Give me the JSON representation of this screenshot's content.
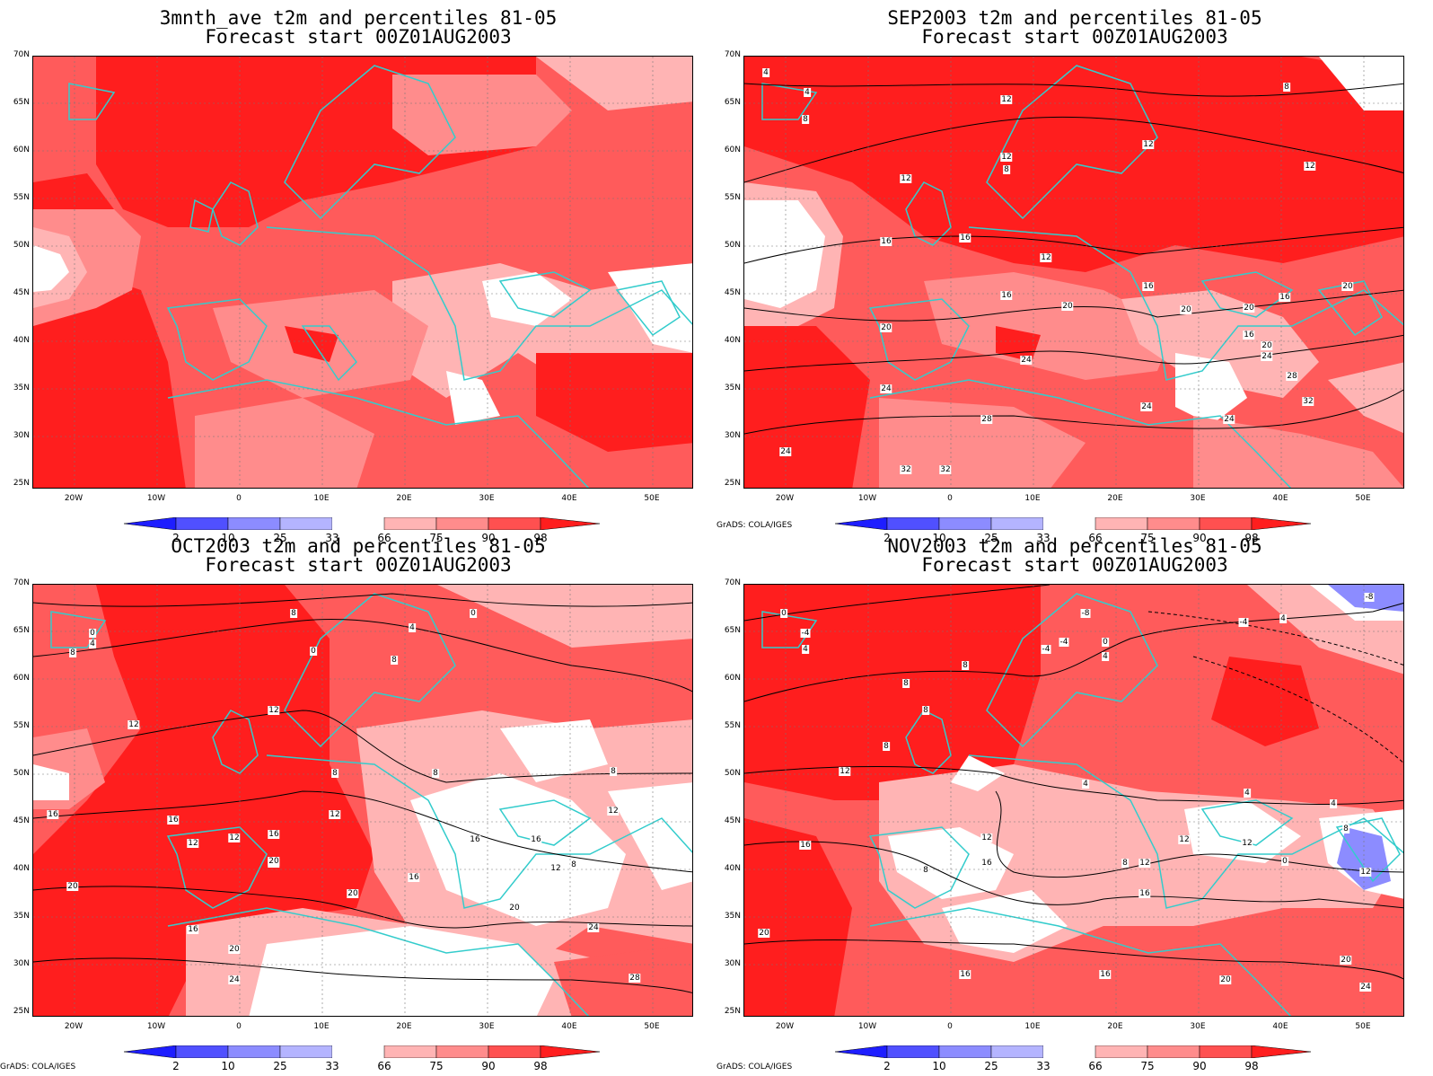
{
  "panels": [
    {
      "title_line1": "3mnth_ave t2m and percentiles 81-05",
      "title_line2": "Forecast start 00Z01AUG2003",
      "contour_labels": [],
      "credit": ""
    },
    {
      "title_line1": "SEP2003 t2m and percentiles 81-05",
      "title_line2": "Forecast start 00Z01AUG2003",
      "contour_labels": [
        "4",
        "8",
        "12",
        "12",
        "8",
        "12",
        "12",
        "12",
        "16",
        "16",
        "12",
        "16",
        "16",
        "20",
        "20",
        "20",
        "16",
        "20",
        "20",
        "16",
        "20",
        "24",
        "24",
        "24",
        "28",
        "24",
        "32",
        "24",
        "28",
        "32",
        "32",
        "24",
        "8",
        "4"
      ],
      "credit": "GrADS: COLA/IGES"
    },
    {
      "title_line1": "OCT2003 t2m and percentiles 81-05",
      "title_line2": "Forecast start 00Z01AUG2003",
      "contour_labels": [
        "0",
        "4",
        "8",
        "0",
        "8",
        "4",
        "0",
        "8",
        "12",
        "12",
        "8",
        "8",
        "16",
        "16",
        "12",
        "12",
        "16",
        "20",
        "12",
        "16",
        "16",
        "16",
        "12",
        "8",
        "20",
        "20",
        "16",
        "20",
        "20",
        "24",
        "24",
        "28",
        "8",
        "12",
        "20"
      ],
      "credit": "GrADS: COLA/IGES"
    },
    {
      "title_line1": "NOV2003 t2m and percentiles 81-05",
      "title_line2": "Forecast start 00Z01AUG2003",
      "contour_labels": [
        "0",
        "-4",
        "4",
        "8",
        "-4",
        "-4",
        "0",
        "4",
        "-8",
        "-4",
        "4",
        "8",
        "8",
        "8",
        "12",
        "4",
        "4",
        "4",
        "16",
        "8",
        "12",
        "12",
        "16",
        "12",
        "8",
        "12",
        "0",
        "12",
        "16",
        "20",
        "16",
        "16",
        "20",
        "20",
        "24",
        "8",
        "-8"
      ],
      "credit": "GrADS: COLA/IGES"
    }
  ],
  "lat_labels": [
    "70N",
    "65N",
    "60N",
    "55N",
    "50N",
    "45N",
    "40N",
    "35N",
    "30N",
    "25N"
  ],
  "lon_labels": [
    "20W",
    "10W",
    "0",
    "10E",
    "20E",
    "30E",
    "40E",
    "50E"
  ],
  "colorbar": {
    "labels": [
      "2",
      "10",
      "25",
      "33",
      "66",
      "75",
      "90",
      "98"
    ],
    "colors": [
      "#1e1eff",
      "#5050ff",
      "#8c8cff",
      "#b4b4ff",
      "#ffffff",
      "#ffb4b4",
      "#ff8c8c",
      "#ff5050",
      "#ff1e1e"
    ]
  },
  "colors": {
    "coast": "#33cccc",
    "red_strong": "#ff1e1e",
    "red_med": "#ff5b5b",
    "red_light": "#ff8c8c",
    "pink": "#ffb4b4",
    "white": "#ffffff",
    "blue": "#8c8cff"
  }
}
